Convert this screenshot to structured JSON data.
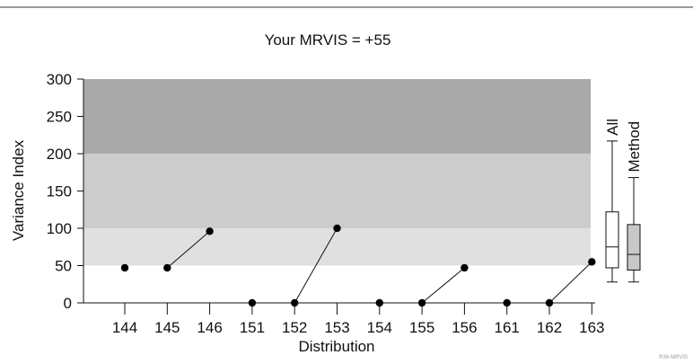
{
  "chart_data": {
    "type": "scatter",
    "title": "Your MRVIS = +55",
    "xlabel": "Distribution",
    "ylabel": "Variance Index",
    "ylim": [
      0,
      300
    ],
    "yticks": [
      0,
      50,
      100,
      150,
      200,
      250,
      300
    ],
    "categories": [
      "144",
      "145",
      "146",
      "151",
      "152",
      "153",
      "154",
      "155",
      "156",
      "161",
      "162",
      "163"
    ],
    "values": [
      47,
      47,
      96,
      0,
      0,
      100,
      0,
      0,
      47,
      0,
      0,
      55
    ],
    "connected_pairs": [
      [
        1,
        2
      ],
      [
        4,
        5
      ],
      [
        7,
        8
      ],
      [
        10,
        11
      ]
    ],
    "bands": [
      {
        "from": 50,
        "to": 100,
        "color": "#e0e0e0"
      },
      {
        "from": 100,
        "to": 200,
        "color": "#cccccc"
      },
      {
        "from": 200,
        "to": 300,
        "color": "#a9a9a9"
      }
    ],
    "boxplots": [
      {
        "label": "All",
        "min": 28,
        "q1": 47,
        "median": 75,
        "q3": 122,
        "max": 217,
        "fill": "#ffffff"
      },
      {
        "label": "Method",
        "min": 28,
        "q1": 44,
        "median": 65,
        "q3": 105,
        "max": 168,
        "fill": "#c8c8c8"
      }
    ],
    "grid": false,
    "legend": "none"
  },
  "footnote": "R36-MRVIS"
}
